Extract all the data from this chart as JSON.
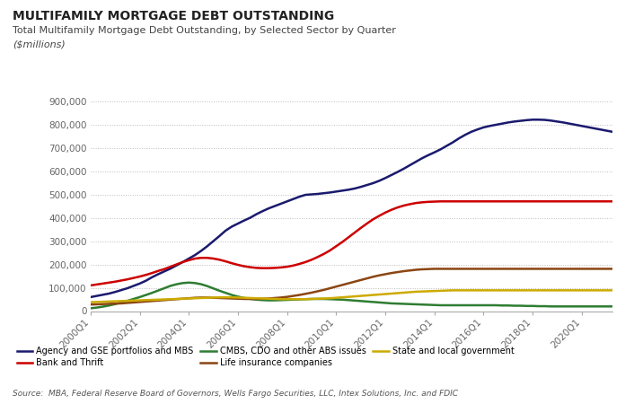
{
  "title": "MULTIFAMILY MORTGAGE DEBT OUTSTANDING",
  "subtitle": "Total Multifamily Mortgage Debt Outstanding, by Selected Sector by Quarter",
  "ylabel_unit": "($millions)",
  "source": "Source:  MBA, Federal Reserve Board of Governors, Wells Fargo Securities, LLC, Intex Solutions, Inc. and FDIC",
  "ylim": [
    0,
    900000
  ],
  "yticks": [
    0,
    100000,
    200000,
    300000,
    400000,
    500000,
    600000,
    700000,
    800000,
    900000
  ],
  "ytick_labels": [
    "0",
    "100,000",
    "200,000",
    "300,000",
    "400,000",
    "500,000",
    "600,000",
    "700,000",
    "800,000",
    "900,000"
  ],
  "xtick_labels": [
    "2000Q1",
    "2002Q1",
    "2004Q1",
    "2006Q1",
    "2008Q1",
    "2010Q1",
    "2012Q1",
    "2014Q1",
    "2016Q1",
    "2018Q1",
    "2020Q1"
  ],
  "series": {
    "Agency and GSE portfolios and MBS": {
      "color": "#1a1a6e",
      "linewidth": 1.8,
      "values": [
        60000,
        65000,
        70000,
        75000,
        82000,
        90000,
        98000,
        108000,
        118000,
        130000,
        145000,
        158000,
        170000,
        182000,
        196000,
        210000,
        225000,
        240000,
        258000,
        278000,
        300000,
        322000,
        345000,
        362000,
        375000,
        388000,
        400000,
        415000,
        428000,
        440000,
        450000,
        460000,
        470000,
        480000,
        490000,
        498000,
        500000,
        502000,
        505000,
        508000,
        512000,
        516000,
        520000,
        525000,
        532000,
        540000,
        548000,
        558000,
        570000,
        583000,
        596000,
        610000,
        625000,
        640000,
        655000,
        668000,
        680000,
        693000,
        708000,
        723000,
        740000,
        755000,
        768000,
        778000,
        787000,
        793000,
        798000,
        803000,
        808000,
        812000,
        815000,
        818000,
        820000,
        820000,
        819000,
        816000,
        812000,
        808000,
        803000,
        798000,
        793000,
        788000,
        783000,
        778000,
        773000,
        768000
      ]
    },
    "Bank and Thrift": {
      "color": "#cc0000",
      "linewidth": 1.8,
      "values": [
        110000,
        114000,
        118000,
        122000,
        126000,
        131000,
        136000,
        142000,
        148000,
        155000,
        163000,
        172000,
        180000,
        190000,
        200000,
        210000,
        218000,
        225000,
        228000,
        228000,
        225000,
        220000,
        213000,
        205000,
        198000,
        192000,
        188000,
        185000,
        184000,
        184000,
        185000,
        187000,
        190000,
        195000,
        202000,
        210000,
        220000,
        232000,
        245000,
        260000,
        278000,
        296000,
        316000,
        336000,
        356000,
        375000,
        393000,
        408000,
        422000,
        434000,
        444000,
        452000,
        458000,
        463000,
        466000,
        468000,
        469000,
        470000,
        470000,
        470000,
        470000,
        470000,
        470000,
        470000,
        470000,
        470000,
        470000,
        470000,
        470000,
        470000,
        470000,
        470000,
        470000,
        470000,
        470000,
        470000,
        470000,
        470000,
        470000,
        470000,
        470000,
        470000,
        470000,
        470000,
        470000,
        470000
      ]
    },
    "CMBS, CDO and other ABS issues": {
      "color": "#2e7d32",
      "linewidth": 1.8,
      "values": [
        12000,
        15000,
        19000,
        24000,
        30000,
        37000,
        44000,
        52000,
        60000,
        69000,
        78000,
        88000,
        98000,
        108000,
        115000,
        120000,
        122000,
        120000,
        115000,
        107000,
        97000,
        87000,
        78000,
        69000,
        62000,
        56000,
        52000,
        49000,
        47000,
        46000,
        46000,
        47000,
        48000,
        49000,
        50000,
        51000,
        52000,
        52000,
        52000,
        51000,
        50000,
        49000,
        47000,
        45000,
        43000,
        41000,
        39000,
        37000,
        35000,
        33000,
        32000,
        31000,
        30000,
        29000,
        28000,
        27000,
        26000,
        25000,
        25000,
        25000,
        25000,
        25000,
        25000,
        25000,
        25000,
        25000,
        25000,
        24000,
        24000,
        23000,
        23000,
        22000,
        22000,
        21000,
        21000,
        20000,
        20000,
        20000,
        20000,
        20000,
        20000,
        20000,
        20000,
        20000,
        20000,
        20000
      ]
    },
    "Life insurance companies": {
      "color": "#8B4513",
      "linewidth": 1.8,
      "values": [
        28000,
        29000,
        30000,
        31000,
        32000,
        33000,
        35000,
        37000,
        39000,
        41000,
        43000,
        45000,
        47000,
        49000,
        51000,
        53000,
        55000,
        57000,
        58000,
        58000,
        57000,
        56000,
        55000,
        54000,
        53000,
        52000,
        52000,
        52000,
        53000,
        54000,
        56000,
        58000,
        61000,
        65000,
        69000,
        74000,
        79000,
        85000,
        91000,
        98000,
        105000,
        112000,
        119000,
        126000,
        133000,
        140000,
        147000,
        153000,
        158000,
        163000,
        167000,
        171000,
        174000,
        177000,
        179000,
        180000,
        181000,
        181000,
        181000,
        181000,
        181000,
        181000,
        181000,
        181000,
        181000,
        181000,
        181000,
        181000,
        181000,
        181000,
        181000,
        181000,
        181000,
        181000,
        181000,
        181000,
        181000,
        181000,
        181000,
        181000,
        181000,
        181000,
        181000,
        181000,
        181000,
        181000
      ]
    },
    "State and local government": {
      "color": "#ccaa00",
      "linewidth": 1.8,
      "values": [
        38000,
        39000,
        40000,
        41000,
        42000,
        43000,
        44000,
        45000,
        46000,
        47000,
        48000,
        49000,
        50000,
        51000,
        52000,
        53000,
        54000,
        55000,
        56000,
        57000,
        58000,
        59000,
        59000,
        59000,
        58000,
        57000,
        56000,
        55000,
        54000,
        53000,
        52000,
        51000,
        51000,
        51000,
        51000,
        51000,
        52000,
        53000,
        54000,
        55000,
        57000,
        59000,
        61000,
        63000,
        65000,
        67000,
        69000,
        71000,
        73000,
        75000,
        77000,
        79000,
        81000,
        83000,
        84000,
        85000,
        86000,
        87000,
        88000,
        89000,
        89000,
        89000,
        89000,
        89000,
        89000,
        89000,
        89000,
        89000,
        89000,
        89000,
        89000,
        89000,
        89000,
        89000,
        89000,
        89000,
        89000,
        89000,
        89000,
        89000,
        89000,
        89000,
        89000,
        89000,
        89000,
        89000
      ]
    }
  },
  "legend_order": [
    "Agency and GSE portfolios and MBS",
    "Bank and Thrift",
    "CMBS, CDO and other ABS issues",
    "Life insurance companies",
    "State and local government"
  ],
  "background_color": "#ffffff",
  "grid_color": "#bbbbbb",
  "title_fontsize": 10,
  "subtitle_fontsize": 8,
  "unit_fontsize": 8,
  "tick_fontsize": 7.5,
  "legend_fontsize": 7,
  "source_fontsize": 6.5
}
